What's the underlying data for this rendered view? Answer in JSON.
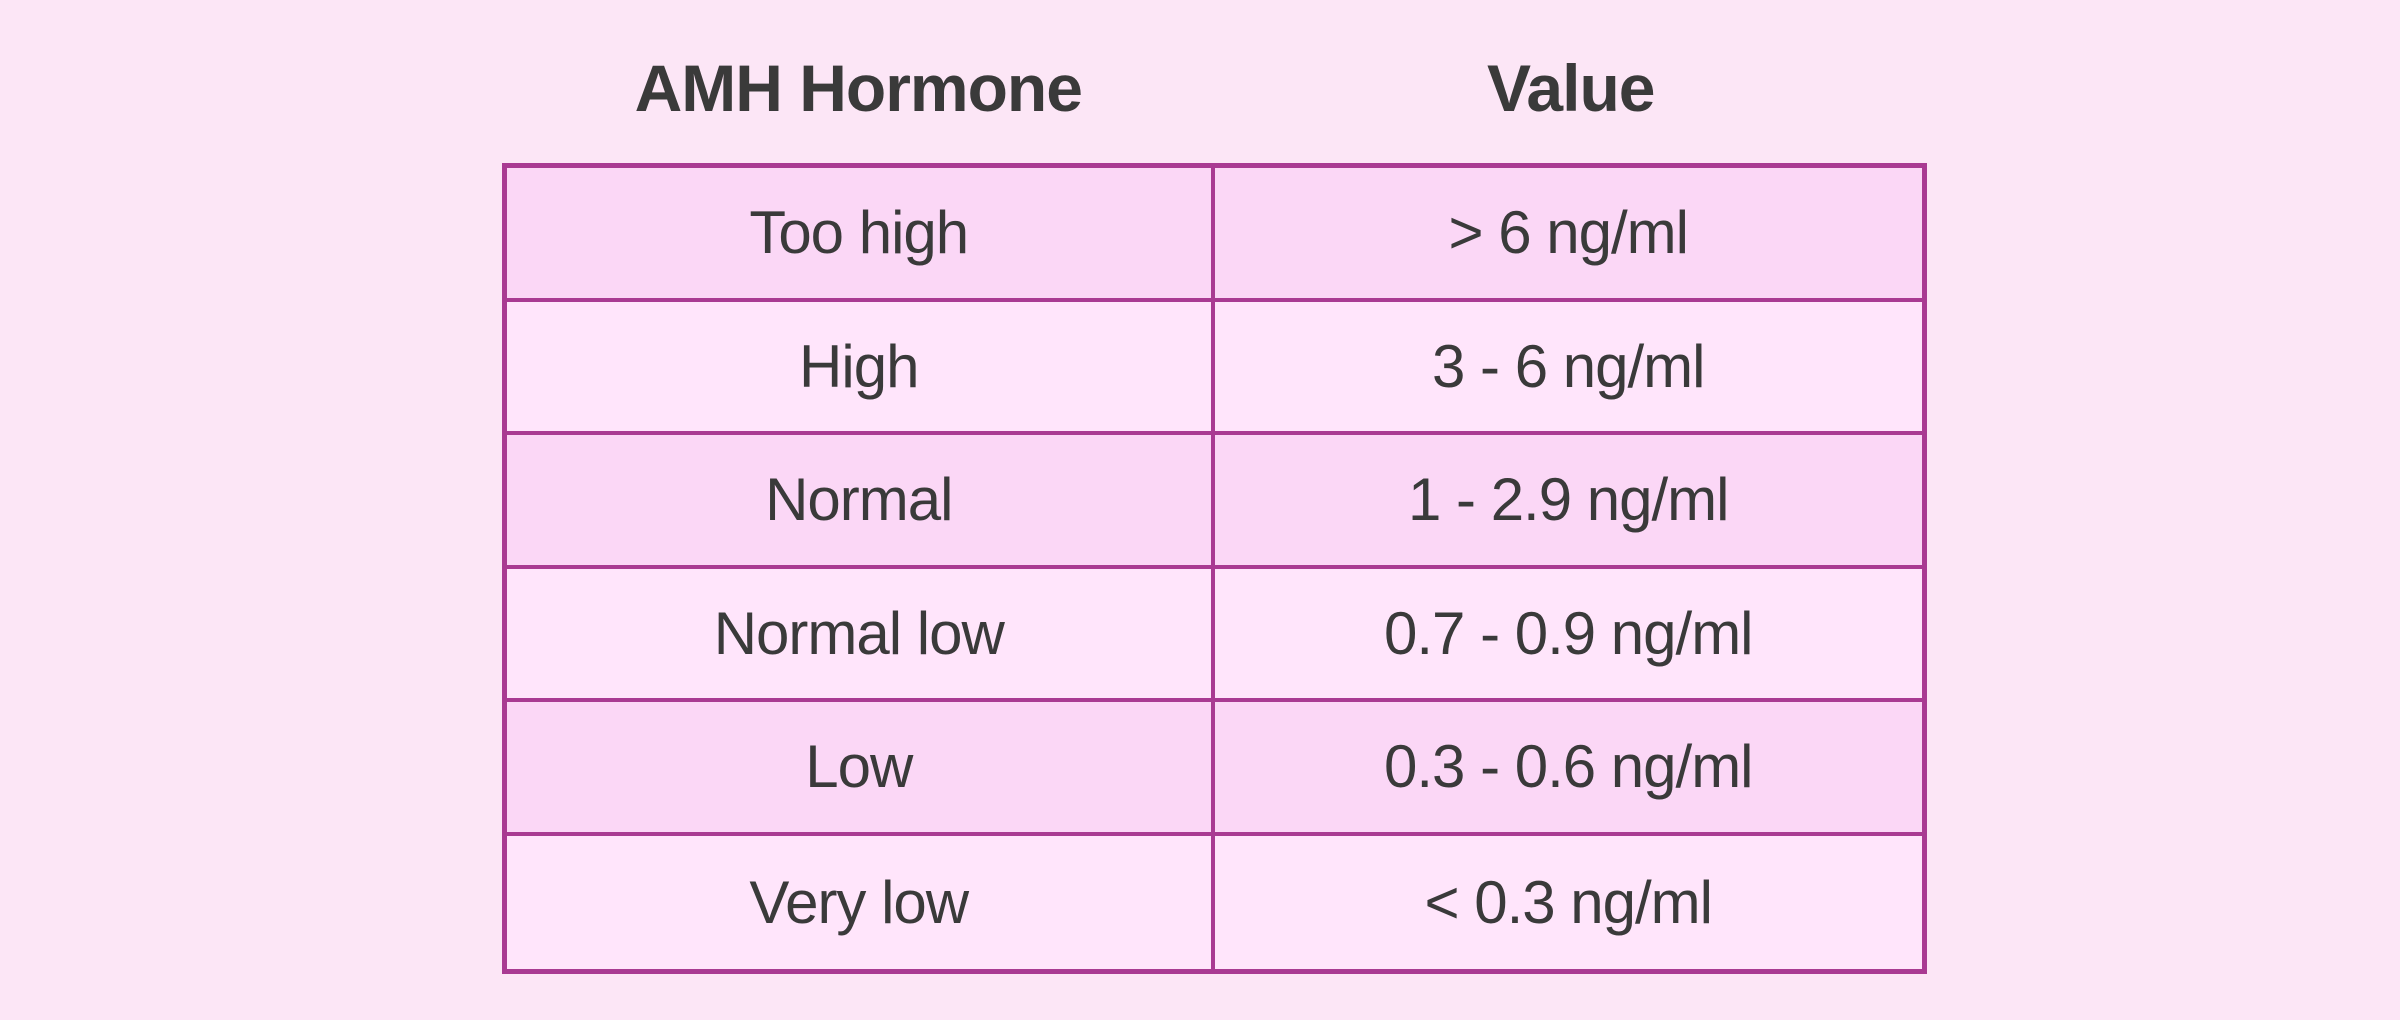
{
  "colors": {
    "page_background": "#fce6f6",
    "row_fill_dark": "#fbd7f6",
    "row_fill_light": "#ffe5fb",
    "table_border": "#a93a92",
    "text": "#3a3a3a"
  },
  "table": {
    "headers": {
      "hormone": "AMH Hormone",
      "value": "Value"
    },
    "rows": [
      {
        "level": "Too high",
        "value": "> 6 ng/ml"
      },
      {
        "level": "High",
        "value": "3 - 6 ng/ml"
      },
      {
        "level": "Normal",
        "value": "1 - 2.9 ng/ml"
      },
      {
        "level": "Normal low",
        "value": "0.7 - 0.9 ng/ml"
      },
      {
        "level": "Low",
        "value": "0.3 - 0.6 ng/ml"
      },
      {
        "level": "Very low",
        "value": "< 0.3 ng/ml"
      }
    ]
  },
  "chart_data": {
    "type": "table",
    "title": "AMH Hormone reference values",
    "columns": [
      "AMH Hormone",
      "Value"
    ],
    "rows": [
      [
        "Too high",
        "> 6 ng/ml"
      ],
      [
        "High",
        "3 - 6 ng/ml"
      ],
      [
        "Normal",
        "1 - 2.9 ng/ml"
      ],
      [
        "Normal low",
        "0.7 - 0.9 ng/ml"
      ],
      [
        "Low",
        "0.3 - 0.6 ng/ml"
      ],
      [
        "Very low",
        "< 0.3 ng/ml"
      ]
    ],
    "units": "ng/ml",
    "numeric_ranges": [
      {
        "category": "Too high",
        "min": 6,
        "max": null
      },
      {
        "category": "High",
        "min": 3,
        "max": 6
      },
      {
        "category": "Normal",
        "min": 1,
        "max": 2.9
      },
      {
        "category": "Normal low",
        "min": 0.7,
        "max": 0.9
      },
      {
        "category": "Low",
        "min": 0.3,
        "max": 0.6
      },
      {
        "category": "Very low",
        "min": null,
        "max": 0.3
      }
    ],
    "layout": {
      "row_striping": "odd rows darker pink, even rows lighter pink",
      "border_style": "magenta solid borders, headers outside table top"
    }
  }
}
